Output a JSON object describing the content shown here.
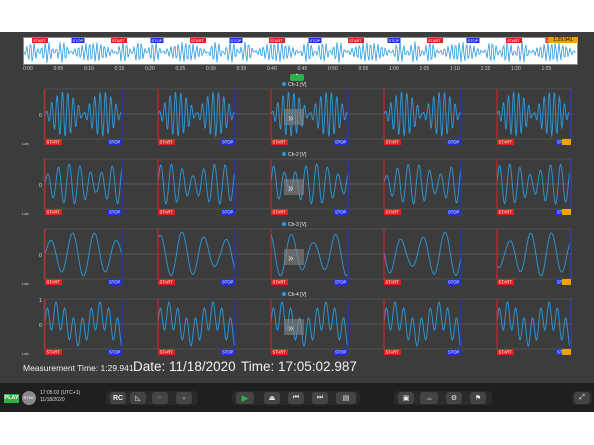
{
  "left_toolbar": {
    "items": [
      {
        "name": "layers-icon"
      },
      {
        "name": "printer-icon"
      }
    ]
  },
  "right_toolbar": {
    "items": [
      {
        "name": "gear-icon"
      },
      {
        "name": "list-icon"
      },
      {
        "name": "gauge-icon"
      },
      {
        "name": "lightning-icon"
      },
      {
        "name": "flag-icon"
      },
      {
        "name": "export-icon"
      },
      {
        "name": "network-icon"
      },
      {
        "name": "car-icon"
      },
      {
        "name": "info-icon"
      }
    ]
  },
  "overview": {
    "end_time": "1:29.941",
    "axis_ticks": [
      "0:00",
      "0:05",
      "0:10",
      "0:15",
      "0:20",
      "0:25",
      "0:30",
      "0:35",
      "0:40",
      "0:45",
      "0:50",
      "0:55",
      "1:00",
      "1:05",
      "1:10",
      "1:15",
      "1:20",
      "1:25"
    ],
    "markers": [
      "START",
      "STOP",
      "START",
      "STOP",
      "START",
      "STOP",
      "START",
      "STOP",
      "START",
      "STOP",
      "START",
      "STOP",
      "START",
      "START"
    ]
  },
  "channels": [
    {
      "title": "Ch-1 [V]",
      "ymax": "",
      "ymid": "0",
      "unit": "Lab"
    },
    {
      "title": "Ch-2 [V]",
      "ymax": "",
      "ymid": "0",
      "unit": "Lab"
    },
    {
      "title": "Ch-3 [V]",
      "ymax": "",
      "ymid": "0",
      "unit": "Lab"
    },
    {
      "title": "Ch-4 [V]",
      "ymax": "1",
      "ymid": "0",
      "unit": "Lab"
    }
  ],
  "segment_labels": {
    "start": "START",
    "stop": "STOP"
  },
  "measurement": {
    "label": "Measurement Time:",
    "value": "1:29.941"
  },
  "date": {
    "label": "Date:",
    "value": "11/18/2020"
  },
  "time": {
    "label": "Time:",
    "value": "17:05:02.987"
  },
  "toolbar": {
    "play": "PLAY",
    "sync": "SYNC",
    "timestamp_line1": "17:05:02 (UTC+1)",
    "timestamp_line2": "11/18/2020",
    "rc": "RC"
  },
  "colors": {
    "signal": "#2b9be0",
    "start": "#e02020",
    "stop": "#2030e0",
    "play": "#2bb34a",
    "panel": "#3c3c3c"
  }
}
